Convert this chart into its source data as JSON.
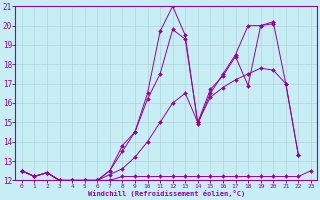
{
  "xlabel": "Windchill (Refroidissement éolien,°C)",
  "xlim": [
    -0.5,
    23.5
  ],
  "ylim": [
    12,
    21
  ],
  "xticks": [
    0,
    1,
    2,
    3,
    4,
    5,
    6,
    7,
    8,
    9,
    10,
    11,
    12,
    13,
    14,
    15,
    16,
    17,
    18,
    19,
    20,
    21,
    22,
    23
  ],
  "yticks": [
    12,
    13,
    14,
    15,
    16,
    17,
    18,
    19,
    20,
    21
  ],
  "bg_color": "#c8eef5",
  "grid_color": "#b0d4d8",
  "line_color": "#990099",
  "series": [
    [
      12.5,
      12.2,
      12.4,
      12.0,
      12.0,
      12.0,
      12.0,
      12.0,
      12.2,
      12.2,
      12.2,
      12.2,
      12.2,
      12.2,
      12.2,
      12.2,
      12.2,
      12.2,
      12.2,
      12.2,
      12.2,
      12.2,
      12.2,
      12.5
    ],
    [
      12.5,
      12.2,
      12.4,
      12.0,
      12.0,
      12.0,
      12.0,
      12.3,
      12.6,
      13.2,
      14.0,
      15.0,
      16.0,
      16.5,
      15.0,
      16.3,
      16.8,
      17.2,
      17.5,
      17.8,
      17.7,
      17.0,
      13.3,
      null
    ],
    [
      12.5,
      12.2,
      12.4,
      12.0,
      12.0,
      12.0,
      12.0,
      12.5,
      13.8,
      14.5,
      16.2,
      17.5,
      19.8,
      19.3,
      15.0,
      16.7,
      17.4,
      18.4,
      16.9,
      20.0,
      20.2,
      17.0,
      13.3,
      null
    ],
    [
      12.5,
      12.2,
      12.4,
      12.0,
      12.0,
      12.0,
      12.0,
      12.5,
      13.5,
      14.5,
      16.5,
      19.7,
      21.0,
      19.5,
      14.9,
      16.5,
      17.5,
      18.5,
      20.0,
      20.0,
      20.1,
      null,
      null,
      null
    ]
  ]
}
